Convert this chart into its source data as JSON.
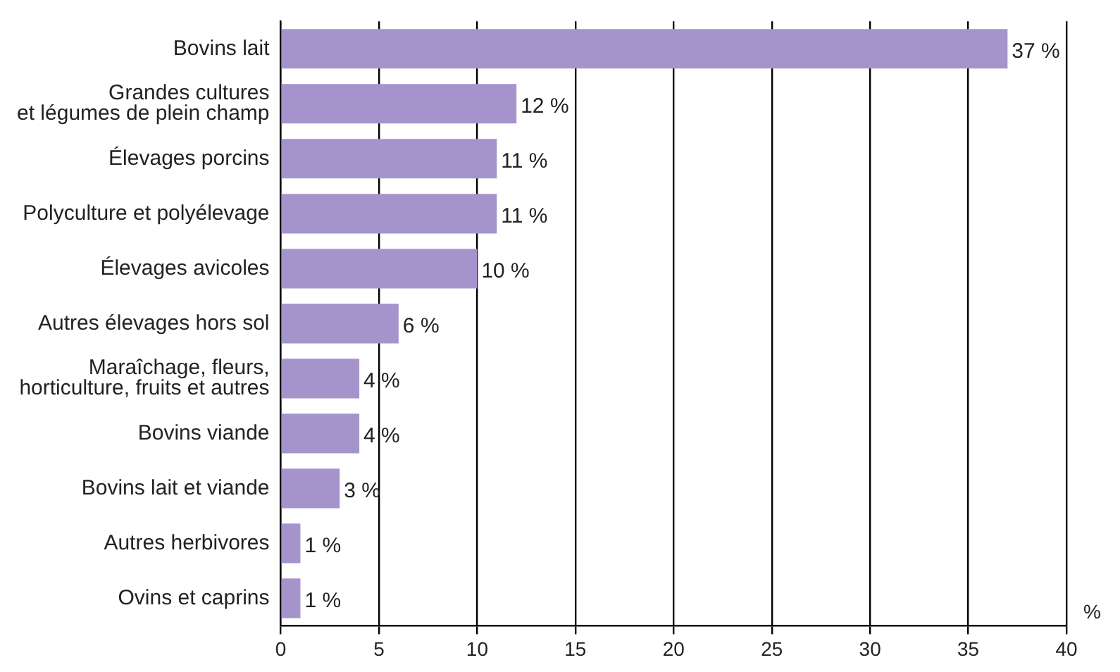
{
  "chart_data": {
    "type": "bar",
    "orientation": "horizontal",
    "xlabel": "%",
    "categories": [
      "Bovins lait",
      "Grandes cultures\net légumes de plein champ",
      "Élevages porcins",
      "Polyculture et polyélevage",
      "Élevages avicoles",
      "Autres élevages hors sol",
      "Maraîchage, fleurs,\nhorticulture, fruits et autres",
      "Bovins viande",
      "Bovins lait et viande",
      "Autres herbivores",
      "Ovins et caprins"
    ],
    "values": [
      37,
      12,
      11,
      11,
      10,
      6,
      4,
      4,
      3,
      1,
      1
    ],
    "value_labels": [
      "37 %",
      "12 %",
      "11 %",
      "11 %",
      "10 %",
      "6 %",
      "4 %",
      "4 %",
      "3 %",
      "1 %",
      "1 %"
    ],
    "color": "#a594cb",
    "xlim": [
      0,
      40
    ],
    "xticks": [
      0,
      5,
      10,
      15,
      20,
      25,
      30,
      35,
      40
    ],
    "grid": "x",
    "legend": false
  }
}
